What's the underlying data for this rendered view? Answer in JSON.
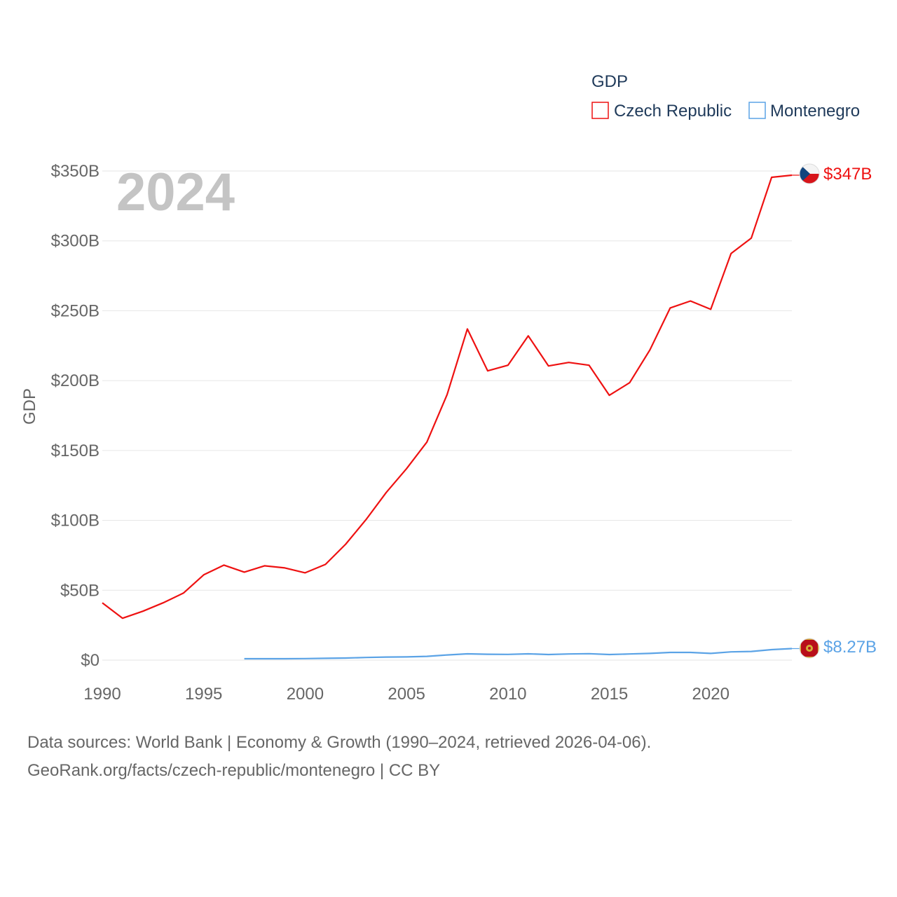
{
  "chart_data": {
    "type": "line",
    "year_label": "2024",
    "ylabel": "GDP",
    "legend": {
      "title": "GDP",
      "entries": [
        "Czech Republic",
        "Montenegro"
      ]
    },
    "x_ticks": [
      "1990",
      "1995",
      "2000",
      "2005",
      "2010",
      "2015",
      "2020"
    ],
    "y_ticks": [
      "$0",
      "$50B",
      "$100B",
      "$150B",
      "$200B",
      "$250B",
      "$300B",
      "$350B"
    ],
    "y_tick_values": [
      0,
      50,
      100,
      150,
      200,
      250,
      300,
      350
    ],
    "ylim": [
      0,
      350
    ],
    "xlim": [
      1990,
      2024
    ],
    "series": [
      {
        "name": "Czech Republic",
        "color": "#ee1111",
        "end_label": "$347B",
        "flag": "czech-flag",
        "x": [
          1990,
          1991,
          1992,
          1993,
          1994,
          1995,
          1996,
          1997,
          1998,
          1999,
          2000,
          2001,
          2002,
          2003,
          2004,
          2005,
          2006,
          2007,
          2008,
          2009,
          2010,
          2011,
          2012,
          2013,
          2014,
          2015,
          2016,
          2017,
          2018,
          2019,
          2020,
          2021,
          2022,
          2023,
          2024
        ],
        "values": [
          41,
          30,
          35,
          41,
          48,
          61,
          68,
          63,
          67.5,
          66,
          62.5,
          68.5,
          83,
          100.5,
          120,
          137,
          156,
          190,
          237,
          207,
          211,
          232,
          210.5,
          213,
          211,
          189.5,
          198.5,
          222,
          252,
          257,
          251,
          291,
          302,
          345.5,
          347
        ]
      },
      {
        "name": "Montenegro",
        "color": "#5ba3e6",
        "end_label": "$8.27B",
        "flag": "montenegro-flag",
        "x": [
          1997,
          1998,
          1999,
          2000,
          2001,
          2002,
          2003,
          2004,
          2005,
          2006,
          2007,
          2008,
          2009,
          2010,
          2011,
          2012,
          2013,
          2014,
          2015,
          2016,
          2017,
          2018,
          2019,
          2020,
          2021,
          2022,
          2023,
          2024
        ],
        "values": [
          1.0,
          1.0,
          1.0,
          1.1,
          1.3,
          1.5,
          1.9,
          2.2,
          2.3,
          2.7,
          3.7,
          4.5,
          4.2,
          4.1,
          4.5,
          4.0,
          4.4,
          4.6,
          4.0,
          4.4,
          4.8,
          5.5,
          5.5,
          4.8,
          5.9,
          6.2,
          7.5,
          8.27
        ]
      }
    ]
  },
  "footer": {
    "line1": "Data sources: World Bank | Economy & Growth (1990–2024, retrieved 2026-04-06).",
    "line2": "GeoRank.org/facts/czech-republic/montenegro | CC BY"
  }
}
